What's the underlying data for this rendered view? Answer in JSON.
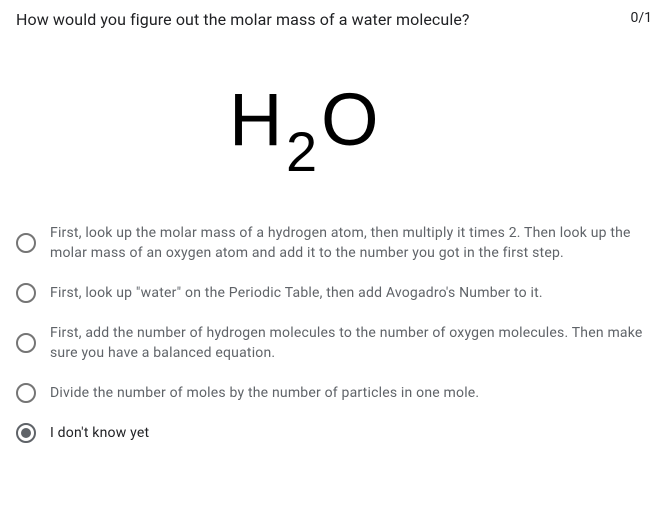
{
  "question": {
    "text": "How would you figure out the molar mass of a water molecule?",
    "points": "0/1",
    "formula": {
      "base1": "H",
      "sub": "2",
      "base2": "O"
    }
  },
  "options": [
    {
      "label": "First, look up the molar mass of a hydrogen atom, then multiply it times 2. Then look up the molar mass of an oxygen atom and add it to the number you got in the first step.",
      "selected": false
    },
    {
      "label": "First, look up \"water\" on the Periodic Table, then add Avogadro's Number to it.",
      "selected": false
    },
    {
      "label": "First, add the number of hydrogen molecules to the number of oxygen molecules. Then make sure you have a balanced equation.",
      "selected": false
    },
    {
      "label": "Divide the number of moles by the number of particles in one mole.",
      "selected": false
    },
    {
      "label": "I don't know yet",
      "selected": true
    }
  ],
  "style": {
    "formula_fontsize": 74,
    "formula_fontfamily": "Arial, Helvetica, sans-serif",
    "text_color": "#202124",
    "muted_color": "#5f6368",
    "radio_border": "#757575"
  }
}
